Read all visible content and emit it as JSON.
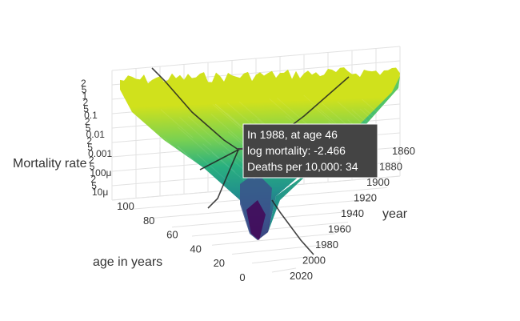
{
  "chart_data": {
    "type": "surface",
    "title": "",
    "colorscale": "viridis",
    "x_axis": {
      "label": "age in years",
      "range": [
        0,
        100
      ],
      "ticks": [
        "100",
        "80",
        "60",
        "40",
        "20",
        "0"
      ]
    },
    "y_axis": {
      "label": "year",
      "range": [
        1850,
        2020
      ],
      "ticks": [
        "1860",
        "1880",
        "1900",
        "1920",
        "1940",
        "1960",
        "1980",
        "2000",
        "2020"
      ]
    },
    "z_axis": {
      "label": "Mortality rate",
      "scale": "log",
      "ticks": [
        "2",
        "5",
        "1",
        "2",
        "5",
        "0.1",
        "2",
        "5",
        "0.01",
        "2",
        "5",
        "0.001",
        "2",
        "5",
        "100μ",
        "2",
        "5",
        "10μ"
      ]
    },
    "hover": {
      "line1": "In 1988, at age 46",
      "line2": "log mortality: -2.466",
      "line3": "Deaths per 10,000: 34",
      "year": 1988,
      "age": 46,
      "log_mortality": -2.466,
      "deaths_per_10000": 34
    }
  }
}
